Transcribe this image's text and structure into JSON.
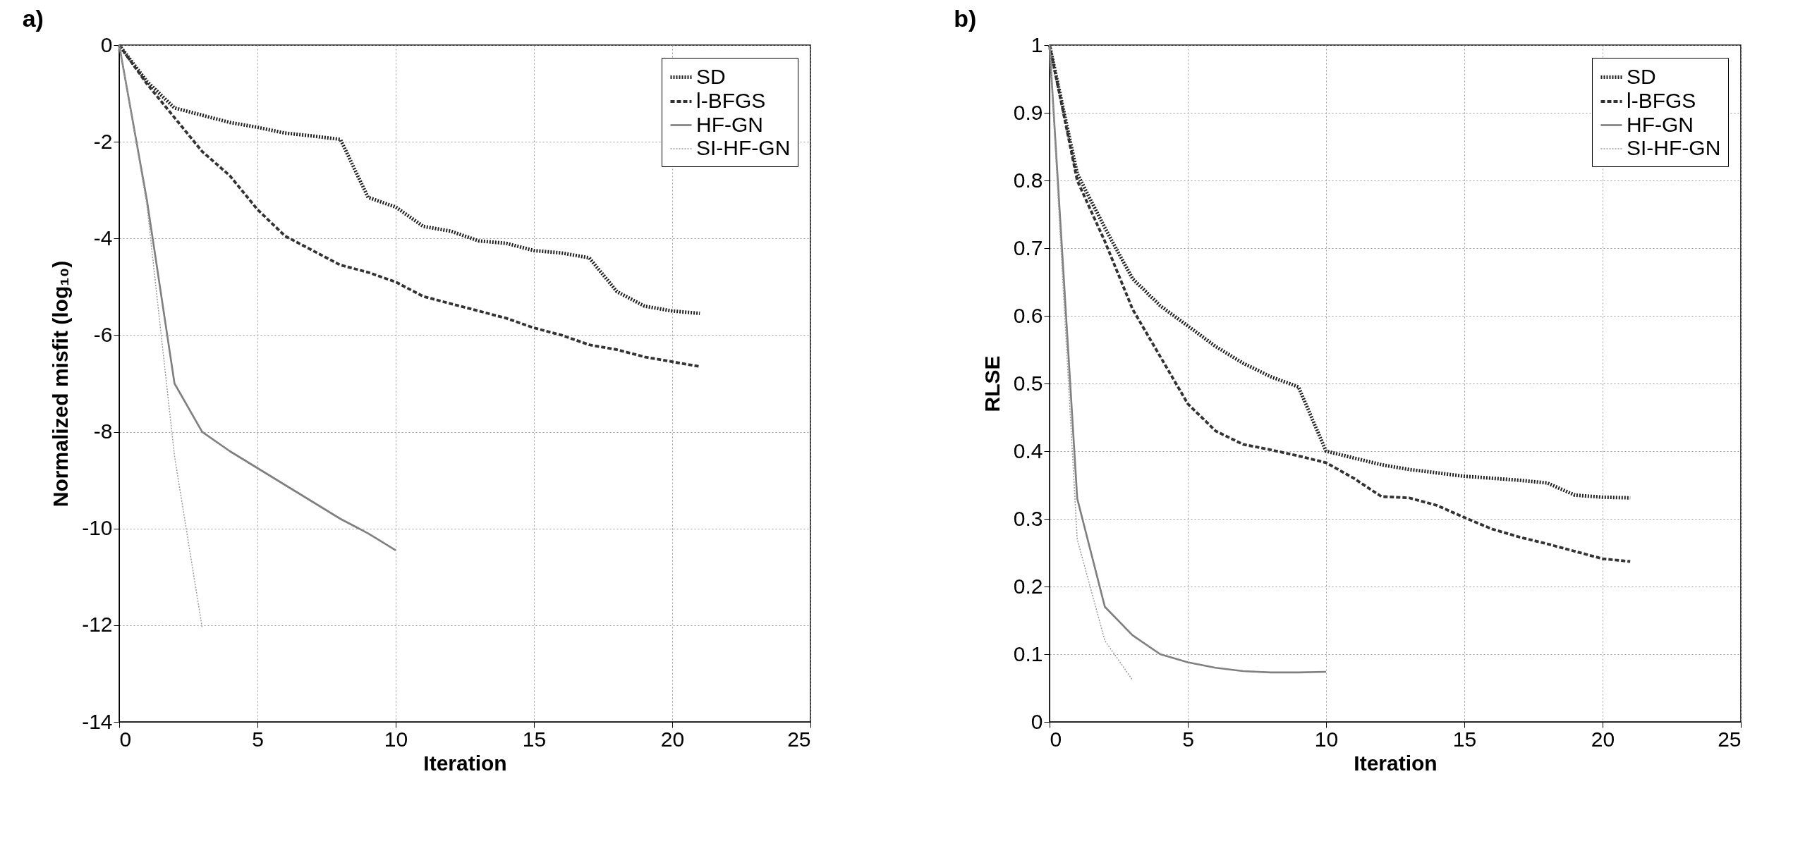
{
  "chart_data": [
    {
      "type": "line",
      "title": "a)",
      "xlabel": "Iteration",
      "ylabel": "Normalized misfit (log₁₀)",
      "xlim": [
        0,
        25
      ],
      "xticks": [
        0,
        5,
        10,
        15,
        20,
        25
      ],
      "ylim": [
        -14,
        0
      ],
      "yticks": [
        -14,
        -12,
        -10,
        -8,
        -6,
        -4,
        -2,
        0
      ],
      "grid": true,
      "legend": "top right",
      "marker": "none",
      "series": [
        {
          "name": "SD",
          "color": "#222222",
          "line_style": "dotted",
          "x": [
            0,
            1,
            2,
            3,
            4,
            5,
            6,
            7,
            8,
            9,
            10,
            11,
            12,
            13,
            14,
            15,
            16,
            17,
            18,
            19,
            20,
            21
          ],
          "values": [
            0,
            -0.75,
            -1.3,
            -1.45,
            -1.6,
            -1.7,
            -1.82,
            -1.88,
            -1.95,
            -3.15,
            -3.35,
            -3.75,
            -3.85,
            -4.05,
            -4.1,
            -4.25,
            -4.3,
            -4.4,
            -5.1,
            -5.4,
            -5.5,
            -5.55
          ]
        },
        {
          "name": "l-BFGS",
          "color": "#333333",
          "line_style": "dashed",
          "x": [
            0,
            1,
            2,
            3,
            4,
            5,
            6,
            7,
            8,
            9,
            10,
            11,
            12,
            13,
            14,
            15,
            16,
            17,
            18,
            19,
            20,
            21
          ],
          "values": [
            0,
            -0.8,
            -1.5,
            -2.2,
            -2.7,
            -3.4,
            -3.95,
            -4.25,
            -4.55,
            -4.7,
            -4.9,
            -5.2,
            -5.35,
            -5.5,
            -5.65,
            -5.85,
            -6.0,
            -6.2,
            -6.3,
            -6.45,
            -6.55,
            -6.65
          ]
        },
        {
          "name": "HF-GN",
          "color": "#808080",
          "line_style": "solid",
          "x": [
            0,
            1,
            2,
            3,
            4,
            5,
            6,
            7,
            8,
            9,
            10
          ],
          "values": [
            0,
            -3.2,
            -7.0,
            -8.0,
            -8.4,
            -8.75,
            -9.1,
            -9.45,
            -9.8,
            -10.1,
            -10.45
          ]
        },
        {
          "name": "SI-HF-GN",
          "color": "#9a9a9a",
          "line_style": "dotted",
          "x": [
            0,
            1,
            2,
            3
          ],
          "values": [
            0,
            -3.3,
            -8.5,
            -12.05
          ]
        }
      ]
    },
    {
      "type": "line",
      "title": "b)",
      "xlabel": "Iteration",
      "ylabel": "RLSE",
      "xlim": [
        0,
        25
      ],
      "xticks": [
        0,
        5,
        10,
        15,
        20,
        25
      ],
      "ylim": [
        0,
        1
      ],
      "yticks": [
        0,
        0.1,
        0.2,
        0.3,
        0.4,
        0.5,
        0.6,
        0.7,
        0.8,
        0.9,
        1
      ],
      "grid": true,
      "legend": "top right",
      "marker": "none",
      "series": [
        {
          "name": "SD",
          "color": "#222222",
          "line_style": "dotted",
          "x": [
            0,
            1,
            2,
            3,
            4,
            5,
            6,
            7,
            8,
            9,
            10,
            11,
            12,
            13,
            14,
            15,
            16,
            17,
            18,
            19,
            20,
            21
          ],
          "values": [
            1,
            0.81,
            0.73,
            0.655,
            0.615,
            0.585,
            0.555,
            0.53,
            0.51,
            0.495,
            0.4,
            0.39,
            0.38,
            0.373,
            0.368,
            0.363,
            0.36,
            0.357,
            0.353,
            0.335,
            0.332,
            0.331
          ]
        },
        {
          "name": "l-BFGS",
          "color": "#333333",
          "line_style": "dashed",
          "x": [
            0,
            1,
            2,
            3,
            4,
            5,
            6,
            7,
            8,
            9,
            10,
            11,
            12,
            13,
            14,
            15,
            16,
            17,
            18,
            19,
            20,
            21
          ],
          "values": [
            1,
            0.8,
            0.71,
            0.61,
            0.54,
            0.47,
            0.43,
            0.41,
            0.402,
            0.393,
            0.383,
            0.36,
            0.333,
            0.331,
            0.32,
            0.302,
            0.285,
            0.273,
            0.263,
            0.252,
            0.241,
            0.237
          ]
        },
        {
          "name": "HF-GN",
          "color": "#808080",
          "line_style": "solid",
          "x": [
            0,
            1,
            2,
            3,
            4,
            5,
            6,
            7,
            8,
            9,
            10
          ],
          "values": [
            1,
            0.33,
            0.17,
            0.128,
            0.1,
            0.088,
            0.08,
            0.075,
            0.073,
            0.073,
            0.074
          ]
        },
        {
          "name": "SI-HF-GN",
          "color": "#9a9a9a",
          "line_style": "dotted",
          "x": [
            0,
            1,
            2,
            3
          ],
          "values": [
            1,
            0.27,
            0.12,
            0.062
          ]
        }
      ]
    }
  ]
}
